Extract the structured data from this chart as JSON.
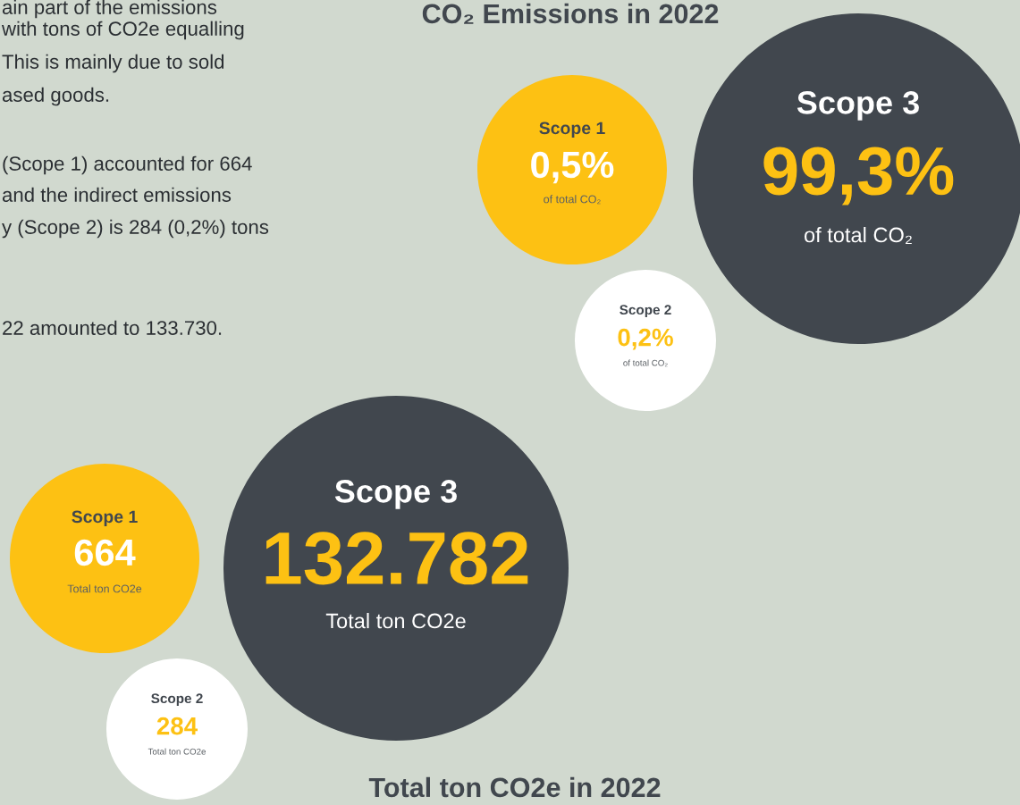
{
  "chart_data": [
    {
      "type": "other",
      "annotations": [
        "ain part of the emissions",
        "with tons of CO2e equalling",
        "This is mainly due to sold",
        "ased goods.",
        "(Scope 1) accounted for 664",
        "and the indirect emissions",
        "y (Scope 2) is 284 (0,2%) tons",
        "22 amounted to 133.730."
      ]
    },
    {
      "type": "other",
      "title": "CO₂ Emissions in 2022",
      "categories": [
        "Scope 1",
        "Scope 2",
        "Scope 3"
      ],
      "values": [
        0.5,
        0.2,
        99.3
      ],
      "value_labels": [
        "0,5%",
        "0,2%",
        "99,3%"
      ],
      "colors": [
        "#fdc113",
        "#ffffff",
        "#41474e"
      ],
      "annotations": [
        "of total CO₂",
        "of total CO₂",
        "of total CO₂"
      ]
    },
    {
      "type": "other",
      "title": "Total ton CO2e in 2022",
      "categories": [
        "Scope 1",
        "Scope 2",
        "Scope 3"
      ],
      "values": [
        664,
        284,
        132782
      ],
      "value_labels": [
        "664",
        "284",
        "132.782"
      ],
      "colors": [
        "#fdc113",
        "#ffffff",
        "#41474e"
      ],
      "annotations": [
        "Total ton CO2e",
        "Total ton CO2e",
        "Total ton CO2e"
      ]
    }
  ]
}
